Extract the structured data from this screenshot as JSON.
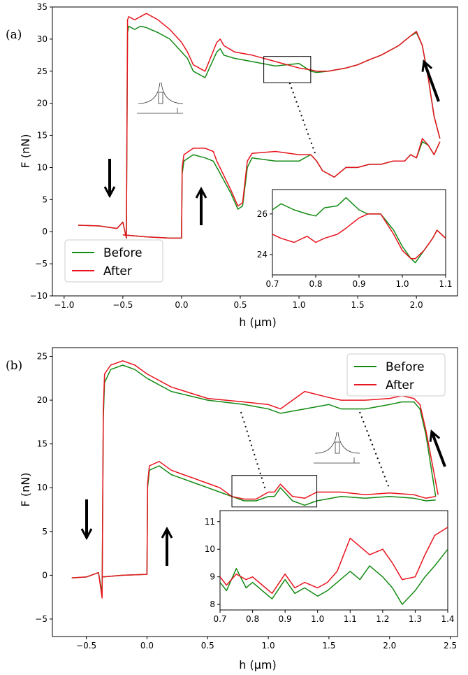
{
  "chart_data": [
    {
      "type": "line",
      "panel_label": "(a)",
      "xlabel": "h (μm)",
      "ylabel": "F (nN)",
      "xlim": [
        -1.1,
        2.35
      ],
      "ylim": [
        -10,
        35
      ],
      "xticks": [
        "−1.0",
        "−0.5",
        "0.0",
        "0.5",
        "1.0",
        "1.5",
        "2.0"
      ],
      "xtick_values": [
        -1.0,
        -0.5,
        0.0,
        0.5,
        1.0,
        1.5,
        2.0
      ],
      "yticks": [
        "−10",
        "−5",
        "0",
        "5",
        "10",
        "15",
        "20",
        "25",
        "30",
        "35"
      ],
      "ytick_values": [
        -10,
        -5,
        0,
        5,
        10,
        15,
        20,
        25,
        30,
        35
      ],
      "legend": {
        "position": "bottom-left",
        "entries": [
          "Before",
          "After"
        ]
      },
      "series": [
        {
          "name": "Before",
          "color": "#138a13",
          "x": [
            -0.88,
            -0.7,
            -0.55,
            -0.5,
            -0.47,
            -0.46,
            -0.45,
            -0.4,
            -0.35,
            -0.3,
            -0.2,
            -0.1,
            0.0,
            0.05,
            0.1,
            0.2,
            0.3,
            0.33,
            0.36,
            0.45,
            0.6,
            0.8,
            1.0,
            1.1,
            1.15,
            1.25,
            1.4,
            1.5,
            1.6,
            1.7,
            1.85,
            1.95,
            2.0,
            2.05,
            2.1,
            2.15,
            2.2
          ],
          "y": [
            1.0,
            0.9,
            0.5,
            1.5,
            -1.0,
            31,
            32,
            31.5,
            32,
            31.8,
            31,
            30,
            28,
            27,
            25,
            24,
            28,
            28.5,
            27.5,
            27,
            26.5,
            25.8,
            26.2,
            25,
            24.8,
            25,
            25.5,
            26,
            26.8,
            27.5,
            29,
            30.5,
            31,
            29,
            24,
            18,
            14.5
          ]
        },
        {
          "name": "After",
          "color": "#e8141e",
          "x": [
            -0.88,
            -0.7,
            -0.55,
            -0.5,
            -0.47,
            -0.46,
            -0.45,
            -0.4,
            -0.35,
            -0.3,
            -0.2,
            -0.1,
            0.0,
            0.05,
            0.1,
            0.2,
            0.3,
            0.33,
            0.36,
            0.45,
            0.6,
            0.8,
            1.0,
            1.1,
            1.15,
            1.25,
            1.4,
            1.5,
            1.6,
            1.7,
            1.85,
            1.95,
            2.0,
            2.05,
            2.1,
            2.15,
            2.2
          ],
          "y": [
            1.0,
            0.9,
            0.5,
            1.5,
            -1.0,
            33,
            33.5,
            33,
            33.5,
            34,
            33,
            31.5,
            29.5,
            28,
            26,
            25,
            29.5,
            30,
            29,
            28,
            27.5,
            26.5,
            25.5,
            25.2,
            25,
            25,
            25.5,
            26,
            26.8,
            27.5,
            29,
            30.5,
            31.2,
            29,
            24,
            18,
            14.5
          ]
        },
        {
          "name": "Before",
          "color": "#138a13",
          "x": [
            -0.5,
            -0.3,
            -0.1,
            0.0,
            0.005,
            0.02,
            0.1,
            0.2,
            0.27,
            0.3,
            0.42,
            0.48,
            0.52,
            0.56,
            0.6,
            0.8,
            1.0,
            1.1,
            1.15,
            1.2,
            1.3,
            1.4,
            1.5,
            1.6,
            1.7,
            1.8,
            1.9,
            1.95,
            2.0,
            2.05,
            2.1,
            2.15,
            2.2
          ],
          "y": [
            -0.5,
            -0.8,
            -1.0,
            -1.0,
            9,
            11,
            12,
            11.5,
            11,
            10,
            6,
            3.5,
            4,
            10,
            11.5,
            11,
            11,
            12,
            11,
            9.5,
            8.5,
            10,
            10,
            10.5,
            10.5,
            11,
            11,
            12,
            11.5,
            14,
            13.5,
            12,
            14
          ]
        },
        {
          "name": "After",
          "color": "#e8141e",
          "x": [
            -0.5,
            -0.3,
            -0.1,
            0.0,
            0.005,
            0.02,
            0.1,
            0.2,
            0.27,
            0.3,
            0.42,
            0.48,
            0.52,
            0.56,
            0.6,
            0.8,
            1.0,
            1.1,
            1.15,
            1.2,
            1.3,
            1.4,
            1.5,
            1.6,
            1.7,
            1.8,
            1.9,
            1.95,
            2.0,
            2.05,
            2.1,
            2.15,
            2.2
          ],
          "y": [
            -0.5,
            -0.8,
            -1.0,
            -1.0,
            10,
            12,
            13,
            13,
            12.5,
            11,
            6.5,
            4,
            4.5,
            11,
            12.2,
            12.5,
            12,
            12,
            11,
            9.5,
            8.5,
            10,
            10,
            10.5,
            10.5,
            11,
            11,
            12,
            11.5,
            14.5,
            13.5,
            12,
            14
          ]
        }
      ],
      "inset": {
        "xlim": [
          0.7,
          1.1
        ],
        "ylim": [
          23,
          27.2
        ],
        "xticks": [
          "0.7",
          "0.8",
          "0.9",
          "1.0",
          "1.1"
        ],
        "xtick_values": [
          0.7,
          0.8,
          0.9,
          1.0,
          1.1
        ],
        "yticks": [
          "24",
          "26"
        ],
        "ytick_values": [
          24,
          26
        ],
        "series": [
          {
            "name": "Before",
            "color": "#138a13",
            "x": [
              0.7,
              0.72,
              0.75,
              0.78,
              0.8,
              0.82,
              0.85,
              0.87,
              0.9,
              0.92,
              0.95,
              0.98,
              1.0,
              1.02,
              1.03,
              1.05,
              1.07,
              1.08,
              1.1
            ],
            "y": [
              26.2,
              26.5,
              26.2,
              26.0,
              25.9,
              26.3,
              26.4,
              26.8,
              26.2,
              26.0,
              26.0,
              25.2,
              24.4,
              23.8,
              23.6,
              24.2,
              24.8,
              25.2,
              24.8
            ]
          },
          {
            "name": "After",
            "color": "#e8141e",
            "x": [
              0.7,
              0.72,
              0.75,
              0.78,
              0.8,
              0.82,
              0.85,
              0.87,
              0.9,
              0.92,
              0.95,
              0.98,
              1.0,
              1.02,
              1.03,
              1.05,
              1.07,
              1.08,
              1.1
            ],
            "y": [
              25.0,
              24.8,
              24.6,
              24.9,
              24.6,
              24.8,
              25.0,
              25.3,
              25.8,
              26.0,
              26.0,
              25.0,
              24.2,
              23.8,
              23.8,
              24.2,
              24.8,
              25.2,
              24.8
            ]
          }
        ]
      },
      "annotations": [
        "arrow-down",
        "arrow-up",
        "arrow-up-right"
      ]
    },
    {
      "type": "line",
      "panel_label": "(b)",
      "xlabel": "h (μm)",
      "ylabel": "F (nN)",
      "xlim": [
        -0.78,
        2.56
      ],
      "ylim": [
        -7,
        26
      ],
      "xticks": [
        "−0.5",
        "0.0",
        "0.5",
        "1.0",
        "1.5",
        "2.0",
        "2.5"
      ],
      "xtick_values": [
        -0.5,
        0.0,
        0.5,
        1.0,
        1.5,
        2.0,
        2.5
      ],
      "yticks": [
        "−5",
        "0",
        "5",
        "10",
        "15",
        "20",
        "25"
      ],
      "ytick_values": [
        -5,
        0,
        5,
        10,
        15,
        20,
        25
      ],
      "legend": {
        "position": "top-right",
        "entries": [
          "Before",
          "After"
        ]
      },
      "series": [
        {
          "name": "Before",
          "color": "#138a13",
          "x": [
            -0.62,
            -0.5,
            -0.4,
            -0.37,
            -0.36,
            -0.35,
            -0.3,
            -0.2,
            -0.1,
            0.0,
            0.2,
            0.5,
            0.8,
            1.0,
            1.1,
            1.3,
            1.5,
            1.6,
            1.8,
            2.0,
            2.1,
            2.2,
            2.25,
            2.3,
            2.38
          ],
          "y": [
            -0.3,
            -0.2,
            0.3,
            -2.0,
            18,
            22,
            23.5,
            24,
            23.5,
            22.5,
            21,
            20,
            19.5,
            19,
            18.5,
            19,
            19.5,
            19,
            19,
            19.5,
            19.8,
            19.8,
            19,
            16,
            9
          ]
        },
        {
          "name": "After",
          "color": "#e8141e",
          "x": [
            -0.62,
            -0.5,
            -0.4,
            -0.37,
            -0.36,
            -0.35,
            -0.3,
            -0.2,
            -0.1,
            0.0,
            0.2,
            0.5,
            0.8,
            1.0,
            1.1,
            1.3,
            1.5,
            1.6,
            1.8,
            2.0,
            2.1,
            2.2,
            2.25,
            2.3,
            2.4
          ],
          "y": [
            -0.3,
            -0.2,
            0.3,
            -2.6,
            19,
            23,
            24,
            24.5,
            24,
            23,
            21.5,
            20.2,
            19.8,
            19.5,
            19,
            21,
            20.3,
            20,
            20,
            20.2,
            20.5,
            20.2,
            19.5,
            16.5,
            9.2
          ]
        },
        {
          "name": "Before",
          "color": "#138a13",
          "x": [
            -0.37,
            -0.2,
            0.0,
            0.005,
            0.02,
            0.1,
            0.2,
            0.3,
            0.4,
            0.5,
            0.6,
            0.7,
            0.8,
            0.9,
            1.0,
            1.05,
            1.1,
            1.2,
            1.3,
            1.4,
            1.6,
            1.8,
            2.0,
            2.2,
            2.3,
            2.38
          ],
          "y": [
            -0.2,
            0.0,
            0.1,
            10,
            12,
            12.5,
            11.5,
            11,
            10.5,
            10,
            9.5,
            9,
            8.5,
            8.5,
            9,
            9,
            10,
            8.5,
            8,
            8.5,
            9,
            8.8,
            9,
            8.8,
            8.5,
            8.6
          ]
        },
        {
          "name": "After",
          "color": "#e8141e",
          "x": [
            -0.37,
            -0.2,
            0.0,
            0.005,
            0.02,
            0.1,
            0.2,
            0.3,
            0.4,
            0.5,
            0.6,
            0.7,
            0.8,
            0.9,
            1.0,
            1.05,
            1.1,
            1.2,
            1.3,
            1.4,
            1.6,
            1.8,
            2.0,
            2.2,
            2.3,
            2.38
          ],
          "y": [
            -0.2,
            0.0,
            0.1,
            10.5,
            12.5,
            13,
            12,
            11.5,
            11,
            10.5,
            10,
            9,
            8.7,
            8.7,
            9.5,
            9.5,
            10.4,
            9,
            8.8,
            9.5,
            9.5,
            9.2,
            9.4,
            9.2,
            8.8,
            9
          ]
        }
      ],
      "inset": {
        "xlim": [
          0.7,
          1.4
        ],
        "ylim": [
          7.8,
          11.4
        ],
        "xticks": [
          "0.7",
          "0.8",
          "0.9",
          "1.0",
          "1.1",
          "1.2",
          "1.3",
          "1.4"
        ],
        "xtick_values": [
          0.7,
          0.8,
          0.9,
          1.0,
          1.1,
          1.2,
          1.3,
          1.4
        ],
        "yticks": [
          "8",
          "9",
          "10",
          "11"
        ],
        "ytick_values": [
          8,
          9,
          10,
          11
        ],
        "series": [
          {
            "name": "Before",
            "color": "#138a13",
            "x": [
              0.7,
              0.72,
              0.75,
              0.78,
              0.8,
              0.83,
              0.86,
              0.9,
              0.93,
              0.96,
              1.0,
              1.03,
              1.06,
              1.1,
              1.13,
              1.16,
              1.2,
              1.23,
              1.26,
              1.3,
              1.33,
              1.36,
              1.4
            ],
            "y": [
              8.8,
              8.5,
              9.3,
              8.6,
              8.8,
              8.5,
              8.2,
              8.9,
              8.4,
              8.6,
              8.3,
              8.5,
              8.8,
              9.2,
              8.9,
              9.4,
              9.0,
              8.6,
              8.0,
              8.5,
              9.0,
              9.4,
              10.0
            ]
          },
          {
            "name": "After",
            "color": "#e8141e",
            "x": [
              0.7,
              0.72,
              0.75,
              0.78,
              0.8,
              0.83,
              0.86,
              0.9,
              0.93,
              0.96,
              1.0,
              1.03,
              1.06,
              1.1,
              1.13,
              1.16,
              1.2,
              1.23,
              1.26,
              1.3,
              1.33,
              1.36,
              1.4
            ],
            "y": [
              9.0,
              8.7,
              9.1,
              8.9,
              9.0,
              8.7,
              8.4,
              9.1,
              8.6,
              8.8,
              8.6,
              8.8,
              9.2,
              10.4,
              10.1,
              9.8,
              10.0,
              9.5,
              8.9,
              9.0,
              9.8,
              10.5,
              10.8
            ]
          }
        ]
      },
      "annotations": [
        "arrow-down",
        "arrow-up",
        "arrow-up-right"
      ]
    }
  ]
}
